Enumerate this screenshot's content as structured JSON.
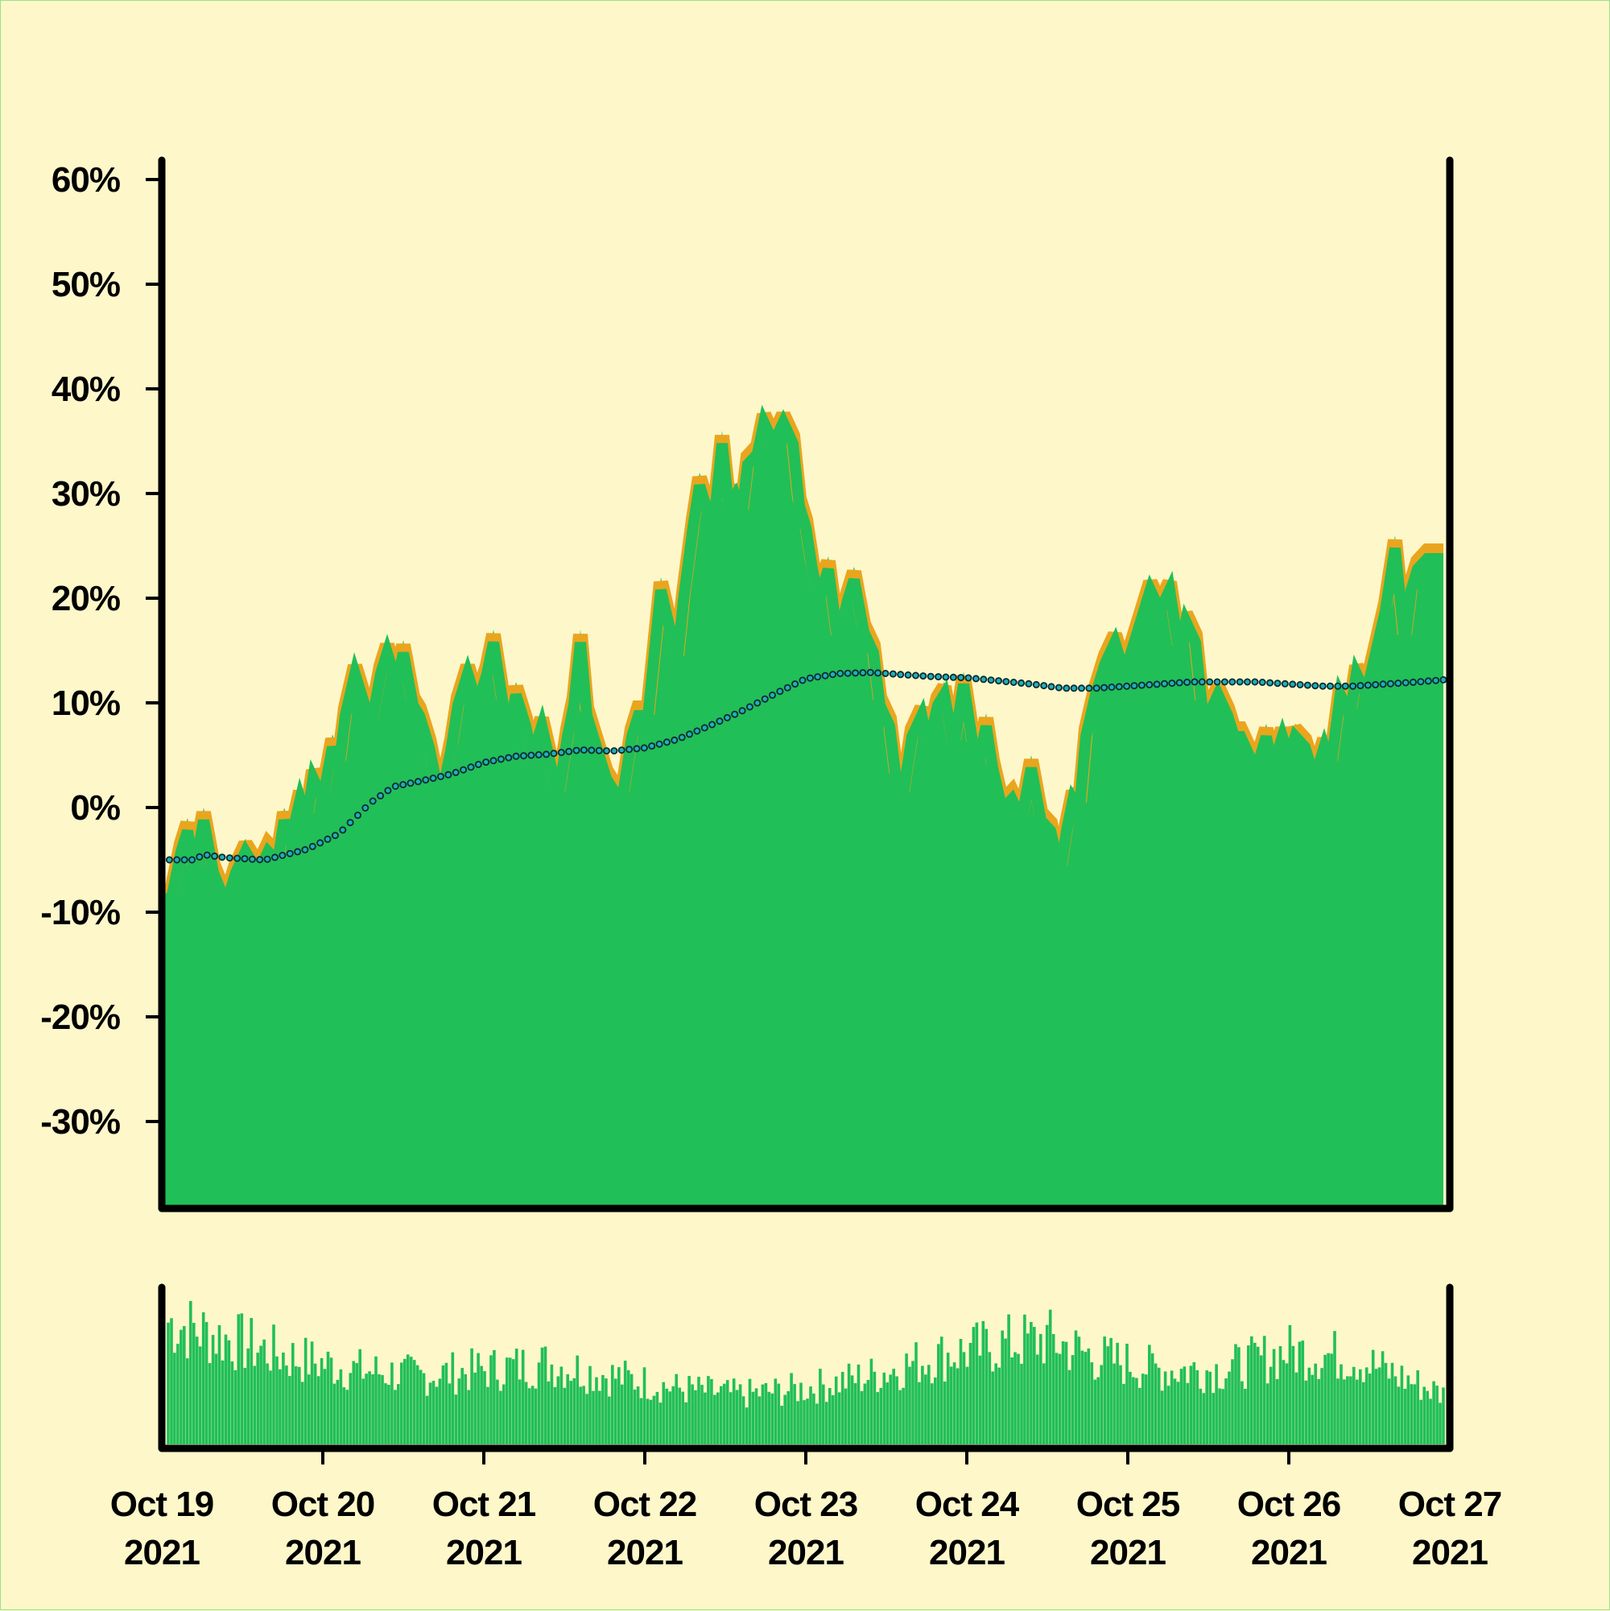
{
  "chart_data": {
    "type": "area",
    "title": "",
    "xlabel": "",
    "ylabel": "",
    "x_ticks": [
      {
        "day": 0,
        "label": [
          "Oct 19",
          "2021"
        ]
      },
      {
        "day": 1,
        "label": [
          "Oct 20",
          "2021"
        ]
      },
      {
        "day": 2,
        "label": [
          "Oct 21",
          "2021"
        ]
      },
      {
        "day": 3,
        "label": [
          "Oct 22",
          "2021"
        ]
      },
      {
        "day": 4,
        "label": [
          "Oct 23",
          "2021"
        ]
      },
      {
        "day": 5,
        "label": [
          "Oct 24",
          "2021"
        ]
      },
      {
        "day": 6,
        "label": [
          "Oct 25",
          "2021"
        ]
      },
      {
        "day": 7,
        "label": [
          "Oct 26",
          "2021"
        ]
      },
      {
        "day": 8,
        "label": [
          "Oct 27",
          "2021"
        ]
      }
    ],
    "x_range": [
      "Oct 19 2021",
      "Oct 27 2021"
    ],
    "ylim": [
      -38,
      62
    ],
    "y_ticks": [
      60,
      50,
      40,
      30,
      20,
      10,
      0,
      -10,
      -20,
      -30
    ],
    "y_tick_labels": [
      "60%",
      "50%",
      "40%",
      "30%",
      "20%",
      "10%",
      "0%",
      "-10%",
      "-20%",
      "-30%"
    ],
    "grid": false,
    "legend": "none",
    "colors": {
      "area": "#21bf57",
      "upper_band": "#eaa51e",
      "trend_marker": "#1fb0b8",
      "frame": "#000000",
      "background": "#fdf7c9"
    },
    "series": [
      {
        "role": "main-area (percent change)",
        "points": [
          [
            0.0,
            -7.5
          ],
          [
            0.06,
            -7.5
          ],
          [
            0.12,
            -3
          ],
          [
            0.16,
            -1
          ],
          [
            0.2,
            -5
          ],
          [
            0.26,
            0
          ],
          [
            0.32,
            -5
          ],
          [
            0.4,
            -8
          ],
          [
            0.46,
            -5
          ],
          [
            0.52,
            -3
          ],
          [
            0.6,
            -5
          ],
          [
            0.66,
            -3
          ],
          [
            0.72,
            -4
          ],
          [
            0.76,
            0
          ],
          [
            0.8,
            -2
          ],
          [
            0.86,
            2
          ],
          [
            0.9,
            0
          ],
          [
            0.94,
            4
          ],
          [
            1.0,
            2
          ],
          [
            1.06,
            7
          ],
          [
            1.1,
            5
          ],
          [
            1.14,
            10
          ],
          [
            1.2,
            14
          ],
          [
            1.26,
            11
          ],
          [
            1.3,
            9
          ],
          [
            1.36,
            14
          ],
          [
            1.4,
            16
          ],
          [
            1.46,
            13
          ],
          [
            1.5,
            16
          ],
          [
            1.56,
            11
          ],
          [
            1.6,
            10
          ],
          [
            1.66,
            7
          ],
          [
            1.7,
            4
          ],
          [
            1.76,
            4
          ],
          [
            1.8,
            7
          ],
          [
            1.84,
            11
          ],
          [
            1.9,
            14
          ],
          [
            1.96,
            11
          ],
          [
            2.02,
            14
          ],
          [
            2.06,
            17
          ],
          [
            2.12,
            11
          ],
          [
            2.16,
            9
          ],
          [
            2.2,
            12
          ],
          [
            2.26,
            9
          ],
          [
            2.3,
            6
          ],
          [
            2.36,
            9
          ],
          [
            2.42,
            5
          ],
          [
            2.46,
            2
          ],
          [
            2.52,
            8
          ],
          [
            2.56,
            11
          ],
          [
            2.6,
            17
          ],
          [
            2.64,
            10
          ],
          [
            2.7,
            7
          ],
          [
            2.76,
            4
          ],
          [
            2.8,
            3
          ],
          [
            2.86,
            2
          ],
          [
            2.92,
            8
          ],
          [
            2.96,
            10
          ],
          [
            3.02,
            10
          ],
          [
            3.06,
            16
          ],
          [
            3.1,
            22
          ],
          [
            3.16,
            18
          ],
          [
            3.2,
            15
          ],
          [
            3.24,
            21
          ],
          [
            3.3,
            28
          ],
          [
            3.34,
            32
          ],
          [
            3.4,
            29
          ],
          [
            3.44,
            30
          ],
          [
            3.48,
            36
          ],
          [
            3.52,
            30
          ],
          [
            3.56,
            31
          ],
          [
            3.6,
            29
          ],
          [
            3.64,
            34
          ],
          [
            3.7,
            35
          ],
          [
            3.74,
            38
          ],
          [
            3.8,
            36
          ],
          [
            3.86,
            38
          ],
          [
            3.92,
            36
          ],
          [
            3.96,
            30
          ],
          [
            4.0,
            28
          ],
          [
            4.04,
            24
          ],
          [
            4.08,
            21
          ],
          [
            4.14,
            24
          ],
          [
            4.2,
            17
          ],
          [
            4.26,
            21
          ],
          [
            4.3,
            23
          ],
          [
            4.36,
            18
          ],
          [
            4.42,
            16
          ],
          [
            4.46,
            11
          ],
          [
            4.52,
            9
          ],
          [
            4.56,
            4
          ],
          [
            4.6,
            2
          ],
          [
            4.66,
            8
          ],
          [
            4.72,
            10
          ],
          [
            4.76,
            7
          ],
          [
            4.82,
            11
          ],
          [
            4.86,
            12
          ],
          [
            4.92,
            7
          ],
          [
            4.98,
            13
          ],
          [
            5.04,
            7
          ],
          [
            5.08,
            6
          ],
          [
            5.12,
            9
          ],
          [
            5.16,
            5
          ],
          [
            5.22,
            1
          ],
          [
            5.28,
            2
          ],
          [
            5.34,
            0
          ],
          [
            5.4,
            5
          ],
          [
            5.46,
            0
          ],
          [
            5.52,
            -1
          ],
          [
            5.58,
            -5
          ],
          [
            5.62,
            -1
          ],
          [
            5.66,
            2
          ],
          [
            5.7,
            1
          ],
          [
            5.74,
            8
          ],
          [
            5.8,
            12
          ],
          [
            5.86,
            15
          ],
          [
            5.92,
            17
          ],
          [
            5.98,
            14
          ],
          [
            6.04,
            17
          ],
          [
            6.08,
            19
          ],
          [
            6.14,
            22
          ],
          [
            6.2,
            20
          ],
          [
            6.26,
            22
          ],
          [
            6.32,
            16
          ],
          [
            6.36,
            19
          ],
          [
            6.42,
            17
          ],
          [
            6.46,
            11
          ],
          [
            6.5,
            10
          ],
          [
            6.56,
            12
          ],
          [
            6.62,
            10
          ],
          [
            6.66,
            8
          ],
          [
            6.7,
            8
          ],
          [
            6.76,
            6
          ],
          [
            6.8,
            5
          ],
          [
            6.86,
            8
          ],
          [
            6.9,
            5
          ],
          [
            6.96,
            8
          ],
          [
            7.0,
            6
          ],
          [
            7.04,
            8
          ],
          [
            7.1,
            7
          ],
          [
            7.16,
            4
          ],
          [
            7.22,
            7
          ],
          [
            7.26,
            5
          ],
          [
            7.32,
            12
          ],
          [
            7.38,
            10
          ],
          [
            7.42,
            14
          ],
          [
            7.48,
            12
          ],
          [
            7.54,
            16
          ],
          [
            7.6,
            20
          ],
          [
            7.66,
            26
          ],
          [
            7.72,
            17
          ],
          [
            7.76,
            22
          ],
          [
            7.8,
            24
          ],
          [
            7.86,
            25
          ],
          [
            7.92,
            25
          ],
          [
            7.96,
            25
          ]
        ]
      },
      {
        "role": "smoothed trend (dotted)",
        "points": [
          [
            0.0,
            -5
          ],
          [
            0.2,
            -5
          ],
          [
            0.26,
            -4.5
          ],
          [
            0.4,
            -4.8
          ],
          [
            0.64,
            -5
          ],
          [
            0.9,
            -4
          ],
          [
            1.1,
            -2.5
          ],
          [
            1.3,
            0.5
          ],
          [
            1.44,
            2
          ],
          [
            1.6,
            2.5
          ],
          [
            1.8,
            3.2
          ],
          [
            2.0,
            4.3
          ],
          [
            2.2,
            4.9
          ],
          [
            2.4,
            5.1
          ],
          [
            2.6,
            5.5
          ],
          [
            2.8,
            5.4
          ],
          [
            3.0,
            5.7
          ],
          [
            3.2,
            6.5
          ],
          [
            3.4,
            7.8
          ],
          [
            3.6,
            9.2
          ],
          [
            3.8,
            10.8
          ],
          [
            4.0,
            12.3
          ],
          [
            4.2,
            12.8
          ],
          [
            4.4,
            12.9
          ],
          [
            4.6,
            12.7
          ],
          [
            4.8,
            12.5
          ],
          [
            5.0,
            12.4
          ],
          [
            5.2,
            12.1
          ],
          [
            5.4,
            11.8
          ],
          [
            5.6,
            11.4
          ],
          [
            5.8,
            11.4
          ],
          [
            6.0,
            11.6
          ],
          [
            6.2,
            11.8
          ],
          [
            6.4,
            12.0
          ],
          [
            6.6,
            12.0
          ],
          [
            6.8,
            12.0
          ],
          [
            7.0,
            11.8
          ],
          [
            7.2,
            11.6
          ],
          [
            7.4,
            11.6
          ],
          [
            7.6,
            11.8
          ],
          [
            7.8,
            12.0
          ],
          [
            7.96,
            12.2
          ]
        ]
      }
    ],
    "volume_subplot": {
      "type": "bar",
      "y_axis_labels": "none",
      "envelope": [
        [
          0.0,
          1.0
        ],
        [
          0.4,
          0.85
        ],
        [
          0.8,
          0.7
        ],
        [
          1.2,
          0.6
        ],
        [
          1.6,
          0.55
        ],
        [
          2.0,
          0.6
        ],
        [
          2.4,
          0.65
        ],
        [
          2.8,
          0.55
        ],
        [
          3.2,
          0.45
        ],
        [
          3.6,
          0.4
        ],
        [
          4.0,
          0.45
        ],
        [
          4.4,
          0.55
        ],
        [
          4.8,
          0.7
        ],
        [
          5.2,
          0.8
        ],
        [
          5.5,
          0.85
        ],
        [
          5.8,
          0.7
        ],
        [
          6.2,
          0.6
        ],
        [
          6.6,
          0.6
        ],
        [
          7.0,
          0.75
        ],
        [
          7.4,
          0.7
        ],
        [
          7.96,
          0.4
        ]
      ]
    }
  }
}
